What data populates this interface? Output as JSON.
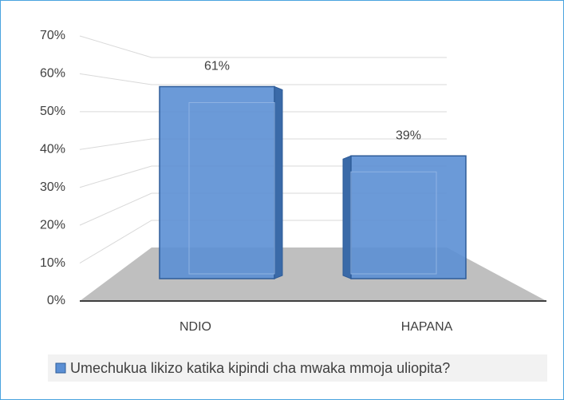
{
  "chart_data": {
    "type": "bar3d",
    "categories": [
      "NDIO",
      "HAPANA"
    ],
    "series": [
      {
        "name": "Umechukua likizo katika kipindi cha mwaka mmoja uliopita?",
        "color": "#5b8fd4",
        "values": [
          61,
          39
        ],
        "value_labels": [
          "61%",
          "39%"
        ]
      }
    ],
    "ylim": [
      0,
      70
    ],
    "yticks": [
      {
        "value": 0,
        "label": "0%"
      },
      {
        "value": 10,
        "label": "10%"
      },
      {
        "value": 20,
        "label": "20%"
      },
      {
        "value": 30,
        "label": "30%"
      },
      {
        "value": 40,
        "label": "40%"
      },
      {
        "value": 50,
        "label": "50%"
      },
      {
        "value": 60,
        "label": "60%"
      },
      {
        "value": 70,
        "label": "70%"
      }
    ],
    "grid": true,
    "legend": "bottom"
  }
}
